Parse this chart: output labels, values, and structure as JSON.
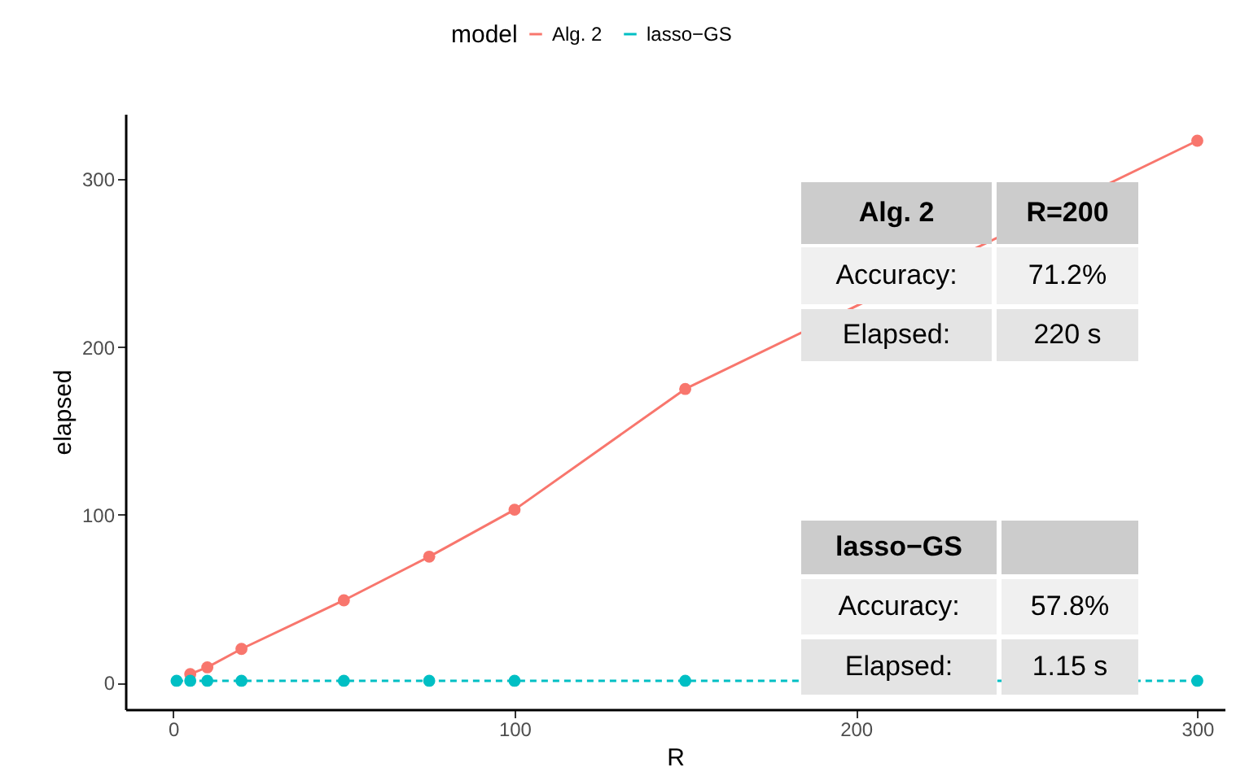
{
  "chart_data": {
    "type": "line",
    "xlabel": "R",
    "ylabel": "elapsed",
    "legend_title": "model",
    "legend": "top",
    "marker": "circle",
    "grid": false,
    "xlim": [
      -14,
      308
    ],
    "ylim": [
      -16,
      339
    ],
    "xticks": [
      0,
      100,
      200,
      300
    ],
    "yticks": [
      0,
      100,
      200,
      300
    ],
    "x": [
      1,
      5,
      10,
      20,
      50,
      75,
      100,
      150,
      300
    ],
    "series": [
      {
        "name": "Alg. 2",
        "color": "#f8766d",
        "line_style": "solid",
        "values": [
          null,
          5,
          9,
          20,
          49,
          75,
          103,
          175,
          323
        ]
      },
      {
        "name": "lasso−GS",
        "color": "#00bfc4",
        "line_style": "dashed",
        "values": [
          1,
          1,
          1,
          1,
          1,
          1,
          1,
          1,
          1
        ]
      }
    ],
    "annotations": [
      "Alg. 2",
      "R=200",
      "Accuracy:",
      "71.2%",
      "Elapsed:",
      "220 s",
      "lasso−GS",
      "Accuracy:",
      "57.8%",
      "Elapsed:",
      "1.15 s"
    ]
  }
}
